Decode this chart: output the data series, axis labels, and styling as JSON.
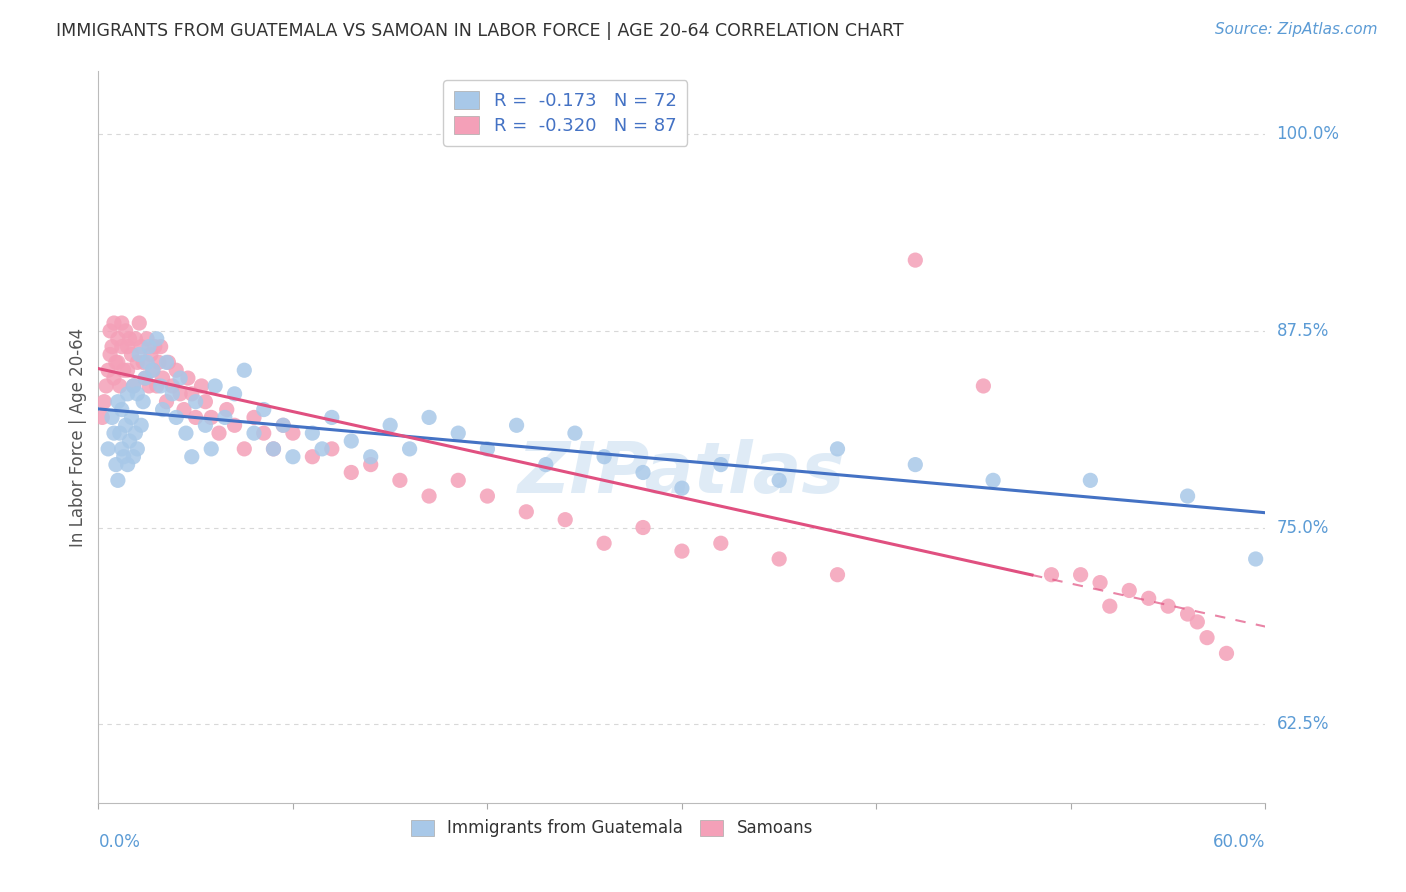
{
  "title": "IMMIGRANTS FROM GUATEMALA VS SAMOAN IN LABOR FORCE | AGE 20-64 CORRELATION CHART",
  "source": "Source: ZipAtlas.com",
  "ylabel": "In Labor Force | Age 20-64",
  "right_yticks": [
    0.625,
    0.75,
    0.875,
    1.0
  ],
  "right_yticklabels": [
    "62.5%",
    "75.0%",
    "87.5%",
    "100.0%"
  ],
  "xmin": 0.0,
  "xmax": 0.6,
  "ymin": 0.575,
  "ymax": 1.04,
  "r_guatemala": -0.173,
  "n_guatemala": 72,
  "r_samoan": -0.32,
  "n_samoan": 87,
  "color_guatemala": "#a8c8e8",
  "color_samoan": "#f4a0b8",
  "color_line_guatemala": "#4472c4",
  "color_line_samoan": "#e05080",
  "legend_label_guatemala": "Immigrants from Guatemala",
  "legend_label_samoan": "Samoans",
  "scatter_guatemala_x": [
    0.005,
    0.007,
    0.008,
    0.009,
    0.01,
    0.01,
    0.011,
    0.012,
    0.012,
    0.013,
    0.014,
    0.015,
    0.015,
    0.016,
    0.017,
    0.018,
    0.018,
    0.019,
    0.02,
    0.02,
    0.021,
    0.022,
    0.023,
    0.024,
    0.025,
    0.026,
    0.028,
    0.03,
    0.032,
    0.033,
    0.035,
    0.038,
    0.04,
    0.042,
    0.045,
    0.048,
    0.05,
    0.055,
    0.058,
    0.06,
    0.065,
    0.07,
    0.075,
    0.08,
    0.085,
    0.09,
    0.095,
    0.1,
    0.11,
    0.115,
    0.12,
    0.13,
    0.14,
    0.15,
    0.16,
    0.17,
    0.185,
    0.2,
    0.215,
    0.23,
    0.245,
    0.26,
    0.28,
    0.3,
    0.32,
    0.35,
    0.38,
    0.42,
    0.46,
    0.51,
    0.56,
    0.595
  ],
  "scatter_guatemala_y": [
    0.8,
    0.82,
    0.81,
    0.79,
    0.83,
    0.78,
    0.81,
    0.8,
    0.825,
    0.795,
    0.815,
    0.79,
    0.835,
    0.805,
    0.82,
    0.795,
    0.84,
    0.81,
    0.8,
    0.835,
    0.86,
    0.815,
    0.83,
    0.845,
    0.855,
    0.865,
    0.85,
    0.87,
    0.84,
    0.825,
    0.855,
    0.835,
    0.82,
    0.845,
    0.81,
    0.795,
    0.83,
    0.815,
    0.8,
    0.84,
    0.82,
    0.835,
    0.85,
    0.81,
    0.825,
    0.8,
    0.815,
    0.795,
    0.81,
    0.8,
    0.82,
    0.805,
    0.795,
    0.815,
    0.8,
    0.82,
    0.81,
    0.8,
    0.815,
    0.79,
    0.81,
    0.795,
    0.785,
    0.775,
    0.79,
    0.78,
    0.8,
    0.79,
    0.78,
    0.78,
    0.77,
    0.73
  ],
  "scatter_samoan_x": [
    0.002,
    0.003,
    0.004,
    0.005,
    0.006,
    0.006,
    0.007,
    0.008,
    0.008,
    0.009,
    0.01,
    0.01,
    0.011,
    0.012,
    0.012,
    0.013,
    0.014,
    0.015,
    0.015,
    0.016,
    0.017,
    0.018,
    0.019,
    0.02,
    0.021,
    0.022,
    0.023,
    0.024,
    0.025,
    0.026,
    0.027,
    0.028,
    0.029,
    0.03,
    0.031,
    0.032,
    0.033,
    0.035,
    0.036,
    0.038,
    0.04,
    0.042,
    0.044,
    0.046,
    0.048,
    0.05,
    0.053,
    0.055,
    0.058,
    0.062,
    0.066,
    0.07,
    0.075,
    0.08,
    0.085,
    0.09,
    0.095,
    0.1,
    0.11,
    0.12,
    0.13,
    0.14,
    0.155,
    0.17,
    0.185,
    0.2,
    0.22,
    0.24,
    0.26,
    0.28,
    0.3,
    0.32,
    0.35,
    0.38,
    0.42,
    0.455,
    0.49,
    0.505,
    0.515,
    0.52,
    0.53,
    0.54,
    0.55,
    0.56,
    0.565,
    0.57,
    0.58
  ],
  "scatter_samoan_y": [
    0.82,
    0.83,
    0.84,
    0.85,
    0.86,
    0.875,
    0.865,
    0.845,
    0.88,
    0.855,
    0.87,
    0.855,
    0.84,
    0.865,
    0.88,
    0.85,
    0.875,
    0.865,
    0.85,
    0.87,
    0.86,
    0.84,
    0.87,
    0.855,
    0.88,
    0.865,
    0.855,
    0.845,
    0.87,
    0.84,
    0.86,
    0.85,
    0.865,
    0.84,
    0.855,
    0.865,
    0.845,
    0.83,
    0.855,
    0.84,
    0.85,
    0.835,
    0.825,
    0.845,
    0.835,
    0.82,
    0.84,
    0.83,
    0.82,
    0.81,
    0.825,
    0.815,
    0.8,
    0.82,
    0.81,
    0.8,
    0.815,
    0.81,
    0.795,
    0.8,
    0.785,
    0.79,
    0.78,
    0.77,
    0.78,
    0.77,
    0.76,
    0.755,
    0.74,
    0.75,
    0.735,
    0.74,
    0.73,
    0.72,
    0.92,
    0.84,
    0.72,
    0.72,
    0.715,
    0.7,
    0.71,
    0.705,
    0.7,
    0.695,
    0.69,
    0.68,
    0.67
  ],
  "samoan_line_xmax": 0.48,
  "watermark": "ZIPatlas",
  "background_color": "#ffffff",
  "grid_color": "#d8d8d8"
}
